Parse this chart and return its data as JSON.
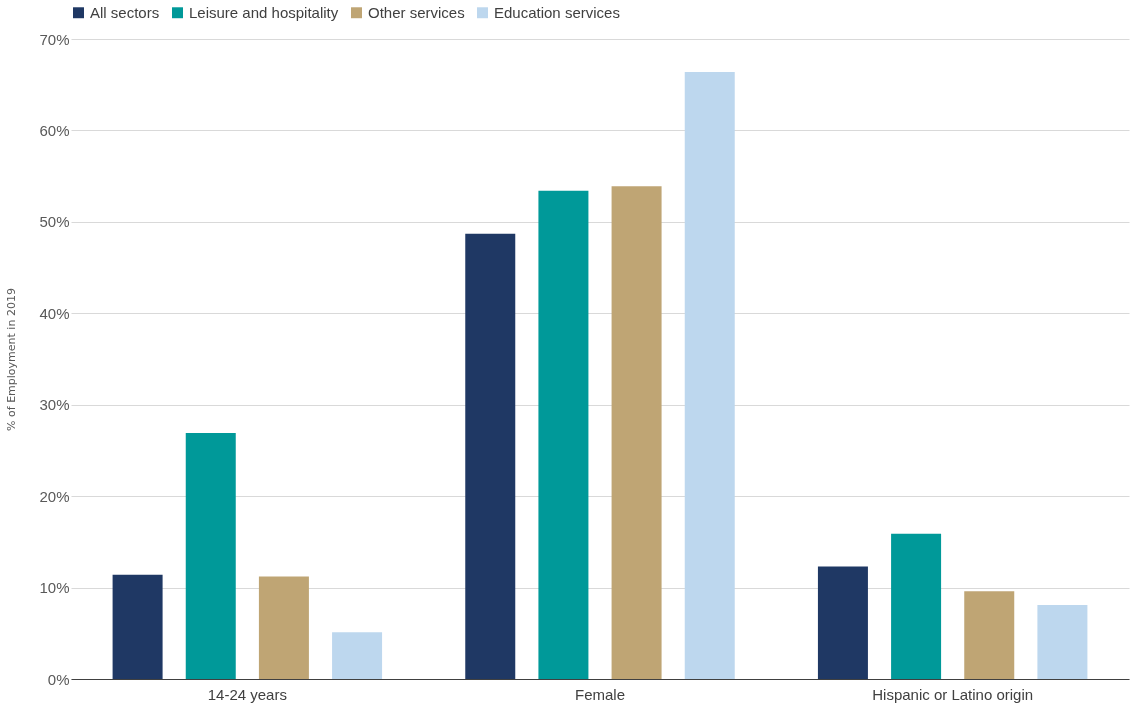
{
  "chart_data": {
    "type": "bar",
    "ylabel": "% of Employment in 2019",
    "categories": [
      "14-24 years",
      "Female",
      "Hispanic or Latino origin"
    ],
    "series": [
      {
        "name": "All sectors",
        "color": "#1f3864",
        "values": [
          11.4,
          48.7,
          12.3
        ]
      },
      {
        "name": "Leisure and hospitality",
        "color": "#009999",
        "values": [
          26.9,
          53.4,
          15.9
        ]
      },
      {
        "name": "Other services",
        "color": "#bfa574",
        "values": [
          11.2,
          53.9,
          9.6
        ]
      },
      {
        "name": "Education services",
        "color": "#bdd7ee",
        "values": [
          5.1,
          66.4,
          8.1
        ]
      }
    ],
    "ylim": [
      0,
      70
    ],
    "yticks": [
      {
        "value": 0,
        "label": "0%"
      },
      {
        "value": 10,
        "label": "10%"
      },
      {
        "value": 20,
        "label": "20%"
      },
      {
        "value": 30,
        "label": "30%"
      },
      {
        "value": 40,
        "label": "40%"
      },
      {
        "value": 50,
        "label": "50%"
      },
      {
        "value": 60,
        "label": "60%"
      },
      {
        "value": 70,
        "label": "70%"
      }
    ],
    "grid": "y",
    "legend": "top"
  }
}
